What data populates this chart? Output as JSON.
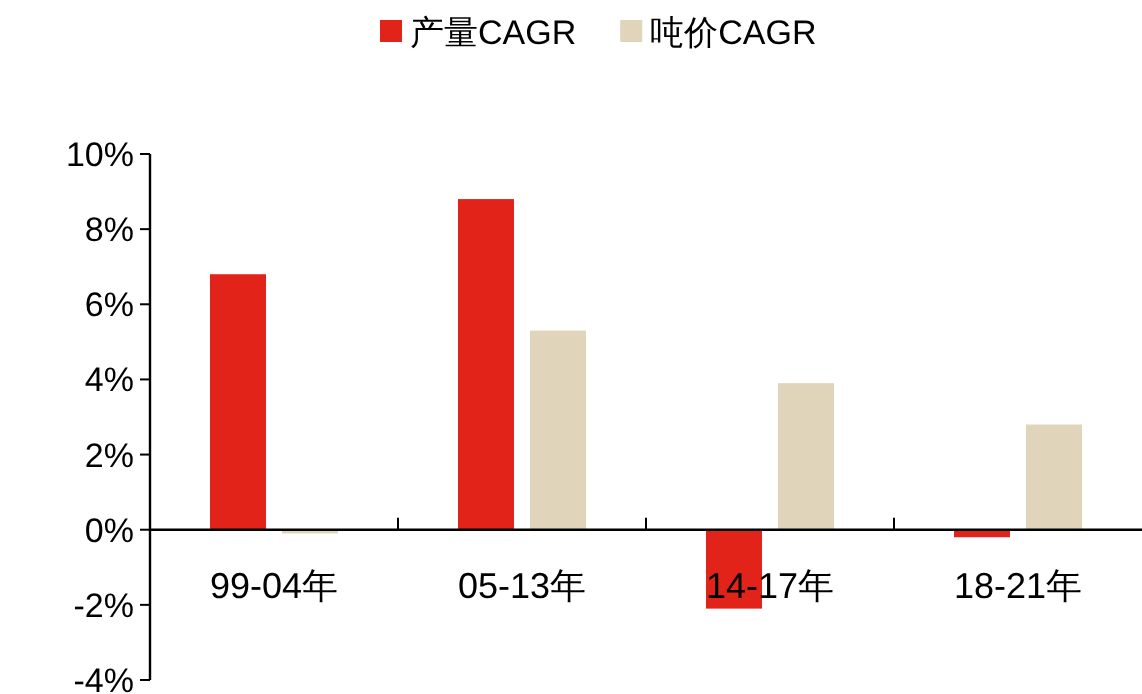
{
  "chart_data": {
    "type": "bar",
    "categories": [
      "99-04年",
      "05-13年",
      "14-17年",
      "18-21年"
    ],
    "series": [
      {
        "name": "产量CAGR",
        "color": "#e2231a",
        "values": [
          6.8,
          8.8,
          -2.1,
          -0.2
        ]
      },
      {
        "name": "吨价CAGR",
        "color": "#e0d5bb",
        "values": [
          -0.1,
          5.3,
          3.9,
          2.8
        ]
      }
    ],
    "ylim": [
      -4,
      10
    ],
    "yticks": [
      {
        "value": -4,
        "label": "-4%"
      },
      {
        "value": -2,
        "label": "-2%"
      },
      {
        "value": 0,
        "label": "0%"
      },
      {
        "value": 2,
        "label": "2%"
      },
      {
        "value": 4,
        "label": "4%"
      },
      {
        "value": 6,
        "label": "6%"
      },
      {
        "value": 8,
        "label": "8%"
      },
      {
        "value": 10,
        "label": "10%"
      }
    ],
    "grid": false,
    "legend": "top"
  }
}
